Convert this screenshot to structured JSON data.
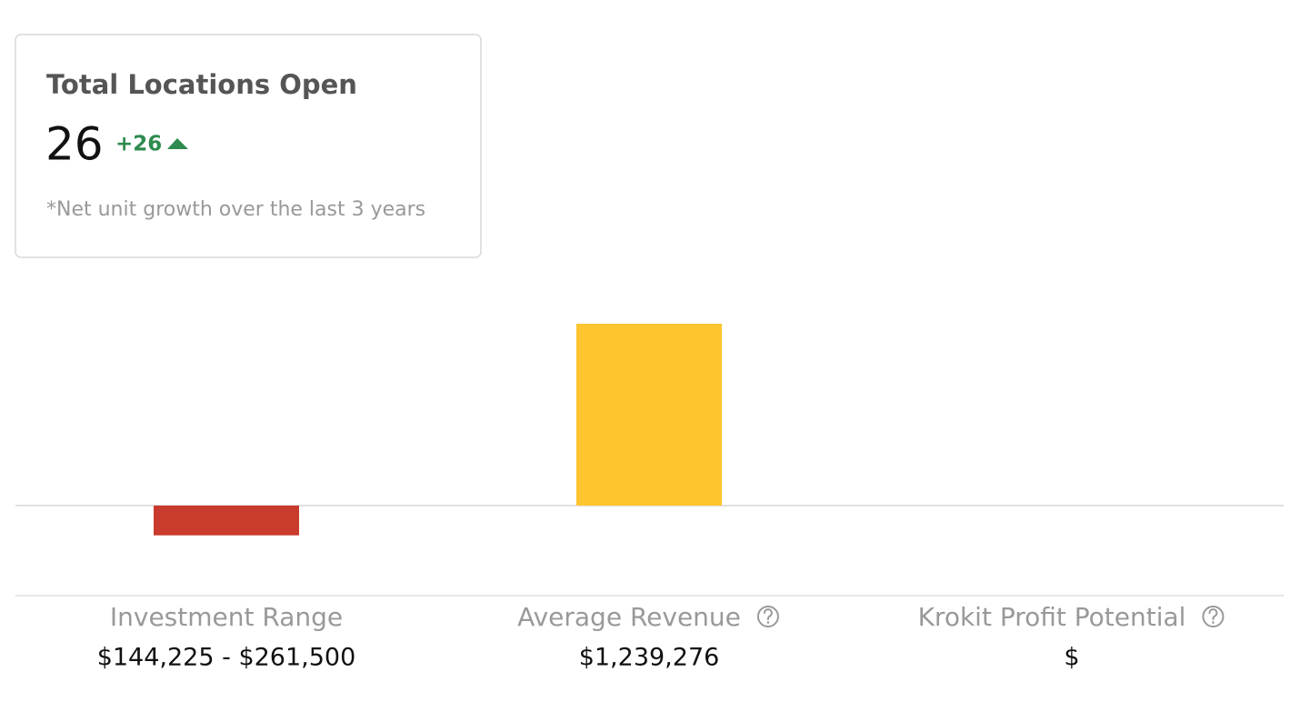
{
  "card": {
    "title": "Total Locations Open",
    "value": "26",
    "change": "+26",
    "note": "*Net unit growth over the last 3 years"
  },
  "chart_data": {
    "type": "bar",
    "categories": [
      "Investment Range",
      "Average Revenue",
      "Krokit Profit Potential"
    ],
    "values": [
      -203000,
      1239276,
      null
    ],
    "value_labels": [
      "$144,225 - $261,500",
      "$1,239,276",
      "$"
    ],
    "colors": [
      "#c93b2c",
      "#fec52f",
      "#fec52f"
    ],
    "ylim": [
      -600000,
      1600000
    ]
  }
}
